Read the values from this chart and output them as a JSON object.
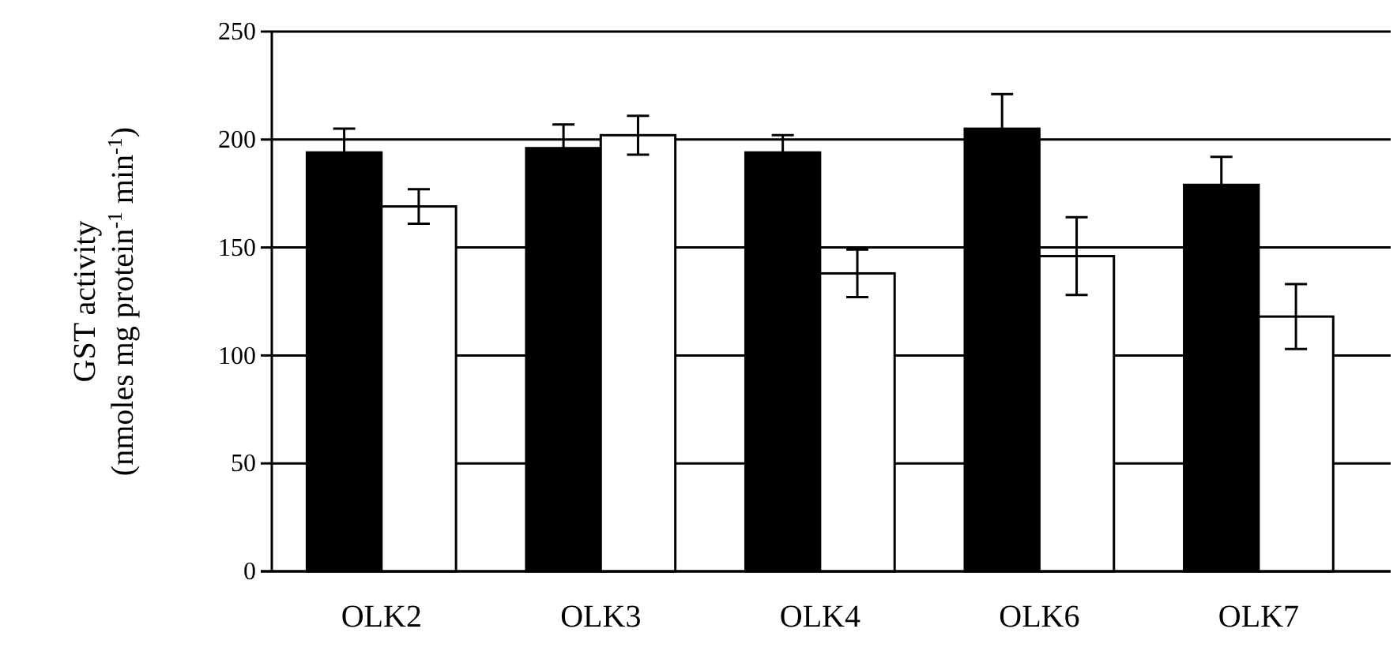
{
  "chart_data": {
    "type": "bar",
    "ylabel": "GST activity\n(nmoles mg protein$^{-1}$ min$^{-1}$)",
    "categories": [
      "OLK2",
      "OLK3",
      "OLK4",
      "OLK6",
      "OLK7"
    ],
    "series": [
      {
        "color": "#000000",
        "values": [
          194,
          196,
          194,
          205,
          179
        ],
        "errors": [
          11,
          11,
          8,
          16,
          13
        ]
      },
      {
        "color": "#ffffff",
        "values": [
          169,
          202,
          138,
          146,
          118
        ],
        "errors": [
          8,
          9,
          11,
          18,
          15
        ]
      }
    ],
    "ylim": [
      0,
      250
    ],
    "yticks": [
      0,
      50,
      100,
      150,
      200,
      250
    ],
    "grid": "y"
  }
}
